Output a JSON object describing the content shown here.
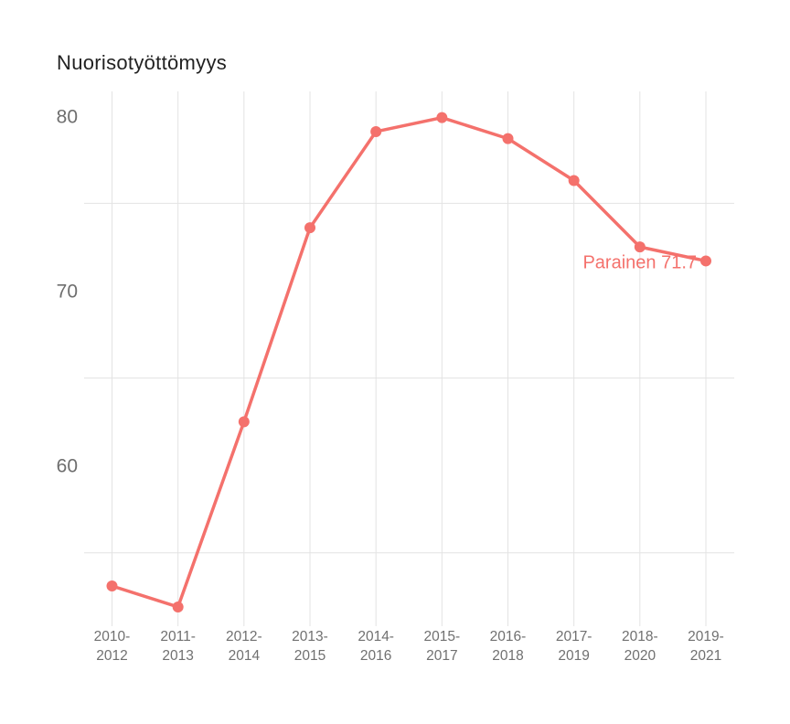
{
  "title": "Nuorisotyöttömyys",
  "chart_data": {
    "type": "line",
    "title": "Nuorisotyöttömyys",
    "categories": [
      [
        "2010-",
        "2012"
      ],
      [
        "2011-",
        "2013"
      ],
      [
        "2012-",
        "2014"
      ],
      [
        "2013-",
        "2015"
      ],
      [
        "2014-",
        "2016"
      ],
      [
        "2015-",
        "2017"
      ],
      [
        "2016-",
        "2018"
      ],
      [
        "2017-",
        "2019"
      ],
      [
        "2018-",
        "2020"
      ],
      [
        "2019-",
        "2021"
      ]
    ],
    "series": [
      {
        "name": "Parainen",
        "values": [
          53.1,
          51.9,
          62.5,
          73.6,
          79.1,
          79.9,
          78.7,
          76.3,
          72.5,
          71.7
        ]
      }
    ],
    "annotation": {
      "label": "Parainen 71.7",
      "series": "Parainen",
      "value": 71.7,
      "position": "left-of-last-point"
    },
    "xlabel": "",
    "ylabel": "",
    "ylim": [
      50.8,
      81.4
    ],
    "y_tick_labels": [
      "80",
      "70",
      "60"
    ],
    "y_tick_values": [
      80,
      70,
      60
    ],
    "y_gridline_values": [
      75,
      65,
      55
    ],
    "x_gridlines": true,
    "legend": "none",
    "colors": {
      "line": "#f4716c",
      "marker": "#f4716c",
      "grid": "#e3e3e3",
      "axis_text": "#6e6e6e",
      "title_text": "#222222",
      "annotation_text": "#f4716c",
      "background": "#ffffff"
    }
  }
}
